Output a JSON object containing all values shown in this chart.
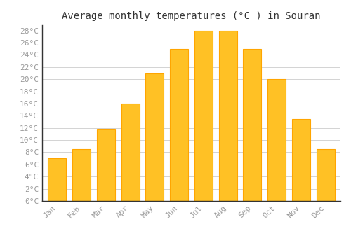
{
  "title": "Average monthly temperatures (°C ) in Souran",
  "months": [
    "Jan",
    "Feb",
    "Mar",
    "Apr",
    "May",
    "Jun",
    "Jul",
    "Aug",
    "Sep",
    "Oct",
    "Nov",
    "Dec"
  ],
  "temperatures": [
    7,
    8.5,
    11.8,
    16,
    21,
    25,
    28,
    28,
    25,
    20,
    13.5,
    8.5
  ],
  "bar_color_face": "#FFC125",
  "bar_color_edge": "#FFA500",
  "background_color": "#ffffff",
  "plot_bg_color": "#ffffff",
  "grid_color": "#cccccc",
  "ytick_step": 2,
  "ymin": 0,
  "ymax": 29,
  "title_fontsize": 10,
  "tick_fontsize": 8,
  "title_color": "#333333",
  "text_color": "#999999"
}
